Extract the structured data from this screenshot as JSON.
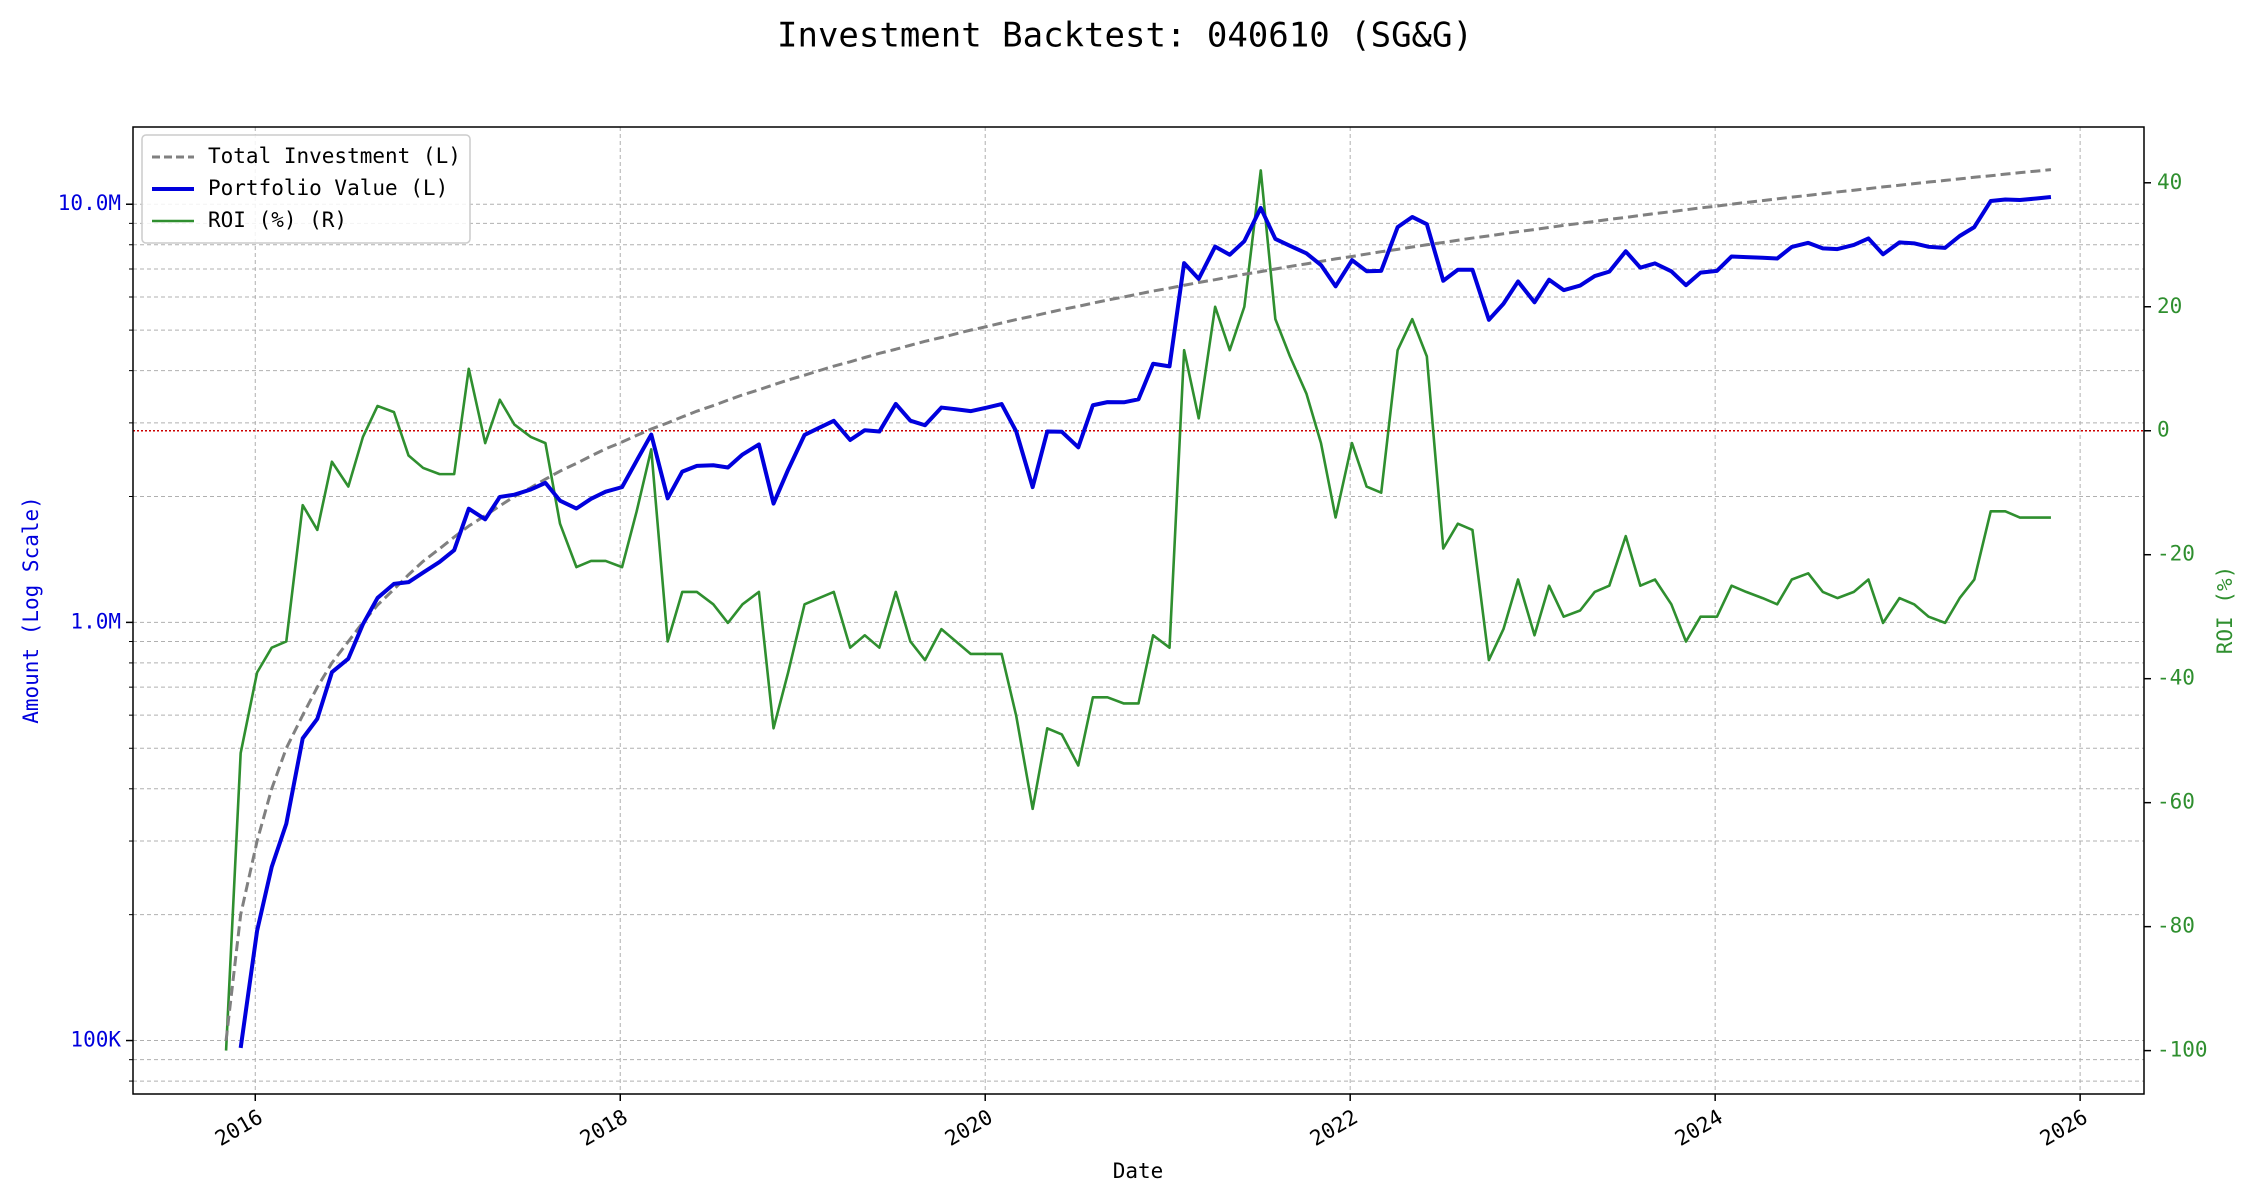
{
  "chart_data": {
    "type": "line",
    "title": "Investment Backtest: 040610 (SG&G)",
    "xlabel": "Date",
    "ylabel": "Amount (Log Scale)",
    "y2label": "ROI (%)",
    "yscale": "log",
    "grid": true,
    "legend": "upper left",
    "xlim": [
      2015.33,
      2026.35
    ],
    "xticks": [
      2016,
      2018,
      2020,
      2022,
      2024,
      2026
    ],
    "ylim": [
      74500,
      15300000
    ],
    "yticks": [
      {
        "value": 100000,
        "label": "100K"
      },
      {
        "value": 1000000,
        "label": "1.0M"
      },
      {
        "value": 10000000,
        "label": "10.0M"
      }
    ],
    "yminorticks": [
      80000,
      90000,
      200000,
      300000,
      400000,
      500000,
      600000,
      700000,
      800000,
      900000,
      2000000,
      3000000,
      4000000,
      5000000,
      6000000,
      7000000,
      8000000,
      9000000
    ],
    "y2lim": [
      -107,
      49
    ],
    "y2ticks": [
      -100,
      -80,
      -60,
      -40,
      -20,
      0,
      20,
      40
    ],
    "y2_reference": 0,
    "x": [
      2015.84,
      2015.92,
      2016.01,
      2016.09,
      2016.17,
      2016.26,
      2016.34,
      2016.42,
      2016.51,
      2016.59,
      2016.67,
      2016.76,
      2016.84,
      2016.92,
      2017.01,
      2017.09,
      2017.17,
      2017.26,
      2017.34,
      2017.42,
      2017.51,
      2017.59,
      2017.67,
      2017.76,
      2017.84,
      2017.92,
      2018.01,
      2018.09,
      2018.17,
      2018.26,
      2018.34,
      2018.42,
      2018.51,
      2018.59,
      2018.67,
      2018.76,
      2018.84,
      2018.92,
      2019.01,
      2019.09,
      2019.17,
      2019.26,
      2019.34,
      2019.42,
      2019.51,
      2019.59,
      2019.67,
      2019.76,
      2019.84,
      2019.92,
      2020.01,
      2020.09,
      2020.17,
      2020.26,
      2020.34,
      2020.42,
      2020.51,
      2020.59,
      2020.67,
      2020.76,
      2020.84,
      2020.92,
      2021.01,
      2021.09,
      2021.17,
      2021.26,
      2021.34,
      2021.42,
      2021.51,
      2021.59,
      2021.67,
      2021.76,
      2021.84,
      2021.92,
      2022.01,
      2022.09,
      2022.17,
      2022.26,
      2022.34,
      2022.42,
      2022.51,
      2022.59,
      2022.67,
      2022.76,
      2022.84,
      2022.92,
      2023.01,
      2023.09,
      2023.17,
      2023.26,
      2023.34,
      2023.42,
      2023.51,
      2023.59,
      2023.67,
      2023.76,
      2023.84,
      2023.92,
      2024.01,
      2024.09,
      2024.17,
      2024.26,
      2024.34,
      2024.42,
      2024.51,
      2024.59,
      2024.67,
      2024.76,
      2024.84,
      2024.92,
      2025.01,
      2025.09,
      2025.17,
      2025.26,
      2025.34,
      2025.42,
      2025.51,
      2025.59,
      2025.67,
      2025.76,
      2025.84
    ],
    "series": [
      {
        "name": "Total Investment (L)",
        "color": "#808080",
        "dash": true,
        "axis": "y",
        "values": [
          100000,
          200000,
          300000,
          400000,
          500000,
          600000,
          700000,
          800000,
          900000,
          1000000,
          1100000,
          1200000,
          1300000,
          1400000,
          1500000,
          1600000,
          1700000,
          1800000,
          1900000,
          2000000,
          2100000,
          2200000,
          2300000,
          2400000,
          2500000,
          2600000,
          2700000,
          2800000,
          2900000,
          3000000,
          3100000,
          3200000,
          3300000,
          3400000,
          3500000,
          3600000,
          3700000,
          3800000,
          3900000,
          4000000,
          4100000,
          4200000,
          4300000,
          4400000,
          4500000,
          4600000,
          4700000,
          4800000,
          4900000,
          5000000,
          5100000,
          5200000,
          5300000,
          5400000,
          5500000,
          5600000,
          5700000,
          5800000,
          5900000,
          6000000,
          6100000,
          6200000,
          6300000,
          6400000,
          6500000,
          6600000,
          6700000,
          6800000,
          6900000,
          7000000,
          7100000,
          7200000,
          7300000,
          7400000,
          7500000,
          7600000,
          7700000,
          7800000,
          7900000,
          8000000,
          8100000,
          8200000,
          8300000,
          8400000,
          8500000,
          8600000,
          8700000,
          8800000,
          8900000,
          9000000,
          9100000,
          9200000,
          9300000,
          9400000,
          9500000,
          9600000,
          9700000,
          9800000,
          9900000,
          10000000,
          10100000,
          10200000,
          10300000,
          10400000,
          10500000,
          10600000,
          10700000,
          10800000,
          10900000,
          11000000,
          11100000,
          11200000,
          11300000,
          11400000,
          11500000,
          11600000,
          11700000,
          11800000,
          11900000,
          12000000,
          12100000
        ]
      },
      {
        "name": "Portfolio Value (L)",
        "color": "#0000dd",
        "dash": false,
        "axis": "y",
        "values": [
          null,
          96000,
          183000,
          260000,
          330000,
          528000,
          588000,
          760000,
          819000,
          990000,
          1144000,
          1236000,
          1248000,
          1316000,
          1395000,
          1488000,
          1870000,
          1764000,
          1995000,
          2020000,
          2079000,
          2156000,
          1955000,
          1872000,
          1975000,
          2054000,
          2106000,
          2436000,
          2813000,
          1980000,
          2294000,
          2368000,
          2376000,
          2346000,
          2520000,
          2664000,
          1924000,
          2318000,
          2808000,
          2920000,
          3034000,
          2730000,
          2881000,
          2860000,
          3330000,
          3036000,
          2961000,
          3264000,
          3234000,
          3200000,
          3264000,
          3328000,
          2862000,
          2106000,
          2860000,
          2856000,
          2622000,
          3306000,
          3363000,
          3360000,
          3416000,
          4154000,
          4095000,
          7232000,
          6630000,
          7920000,
          7571000,
          8160000,
          9798000,
          8260000,
          7952000,
          7632000,
          7154000,
          6364000,
          7350000,
          6916000,
          6930000,
          8814000,
          9322000,
          8960000,
          6561000,
          6970000,
          6972000,
          5292000,
          5780000,
          6536000,
          5829000,
          6600000,
          6230000,
          6390000,
          6734000,
          6900000,
          7719000,
          7050000,
          7220000,
          6912000,
          6402000,
          6860000,
          6930000,
          7500000,
          7474000,
          7446000,
          7416000,
          7904000,
          8085000,
          7844000,
          7811000,
          7992000,
          8284000,
          7590000,
          8103000,
          8064000,
          7910000,
          7866000,
          8395000,
          8816000,
          10179000,
          10266000,
          10234000,
          10320000,
          10406000
        ]
      },
      {
        "name": "ROI (%) (R)",
        "color": "#2f8f2f",
        "dash": false,
        "axis": "y2",
        "values": [
          -100,
          -52,
          -39,
          -35,
          -34,
          -12,
          -16,
          -5,
          -9,
          -1,
          4,
          3,
          -4,
          -6,
          -7,
          -7,
          10,
          -2,
          5,
          1,
          -1,
          -2,
          -15,
          -22,
          -21,
          -21,
          -22,
          -13,
          -3,
          -34,
          -26,
          -26,
          -28,
          -31,
          -28,
          -26,
          -48,
          -39,
          -28,
          -27,
          -26,
          -35,
          -33,
          -35,
          -26,
          -34,
          -37,
          -32,
          -34,
          -36,
          -36,
          -36,
          -46,
          -61,
          -48,
          -49,
          -54,
          -43,
          -43,
          -44,
          -44,
          -33,
          -35,
          13,
          2,
          20,
          13,
          20,
          42,
          18,
          12,
          6,
          -2,
          -14,
          -2,
          -9,
          -10,
          13,
          18,
          12,
          -19,
          -15,
          -16,
          -37,
          -32,
          -24,
          -33,
          -25,
          -30,
          -29,
          -26,
          -25,
          -17,
          -25,
          -24,
          -28,
          -34,
          -30,
          -30,
          -25,
          -26,
          -27,
          -28,
          -24,
          -23,
          -26,
          -27,
          -26,
          -24,
          -31,
          -27,
          -28,
          -30,
          -31,
          -27,
          -24,
          -13,
          -13,
          -14,
          -14,
          -14
        ]
      }
    ]
  }
}
